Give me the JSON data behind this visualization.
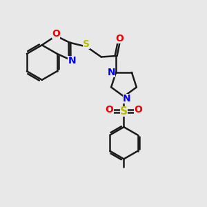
{
  "bg_color": "#e8e8e8",
  "bond_color": "#1a1a1a",
  "N_color": "#0000ee",
  "O_color": "#ee0000",
  "S_color": "#bbbb00",
  "lw": 1.8,
  "fs": 10,
  "fig_size": [
    3.0,
    3.0
  ],
  "dpi": 100,
  "xlim": [
    0,
    10
  ],
  "ylim": [
    0,
    10
  ]
}
